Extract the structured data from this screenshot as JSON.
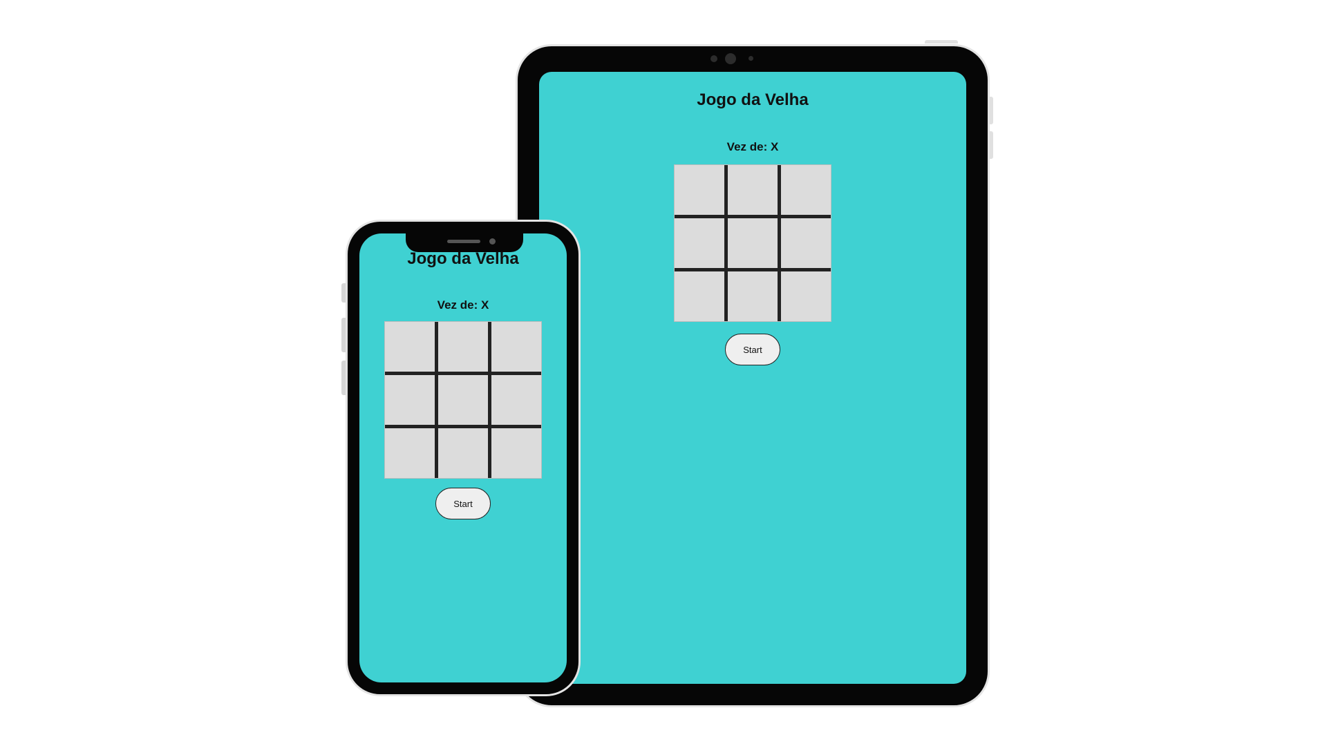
{
  "tablet": {
    "title": "Jogo da Velha",
    "turn_label": "Vez de: X",
    "cells": [
      "",
      "",
      "",
      "",
      "",
      "",
      "",
      "",
      ""
    ],
    "start_label": "Start"
  },
  "phone": {
    "title": "Jogo da Velha",
    "turn_label": "Vez de: X",
    "cells": [
      "",
      "",
      "",
      "",
      "",
      "",
      "",
      "",
      ""
    ],
    "start_label": "Start"
  },
  "colors": {
    "screen_background": "#3fd1d2",
    "cell_background": "#dcdcdc",
    "grid_line": "#222222",
    "device_frame": "#060606",
    "button_background": "#efefef"
  }
}
